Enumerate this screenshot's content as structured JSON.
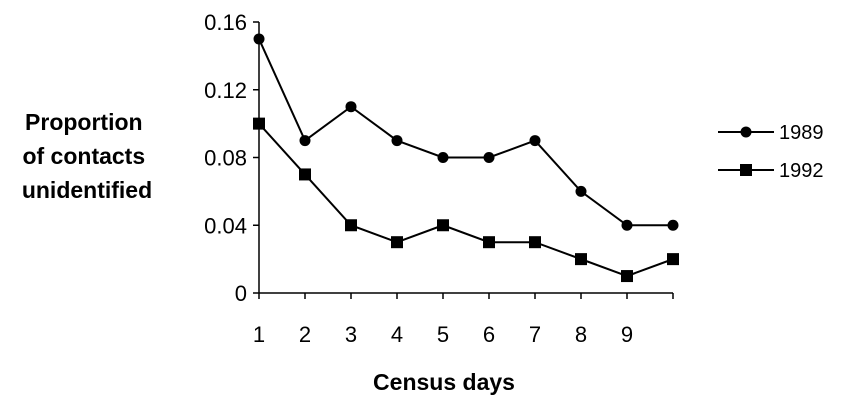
{
  "chart_data": {
    "type": "line",
    "x": [
      1,
      2,
      3,
      4,
      5,
      6,
      7,
      8,
      9,
      10
    ],
    "x_tick_labels": [
      "1",
      "2",
      "3",
      "4",
      "5",
      "6",
      "7",
      "8",
      "9"
    ],
    "xlim": [
      1,
      10
    ],
    "xlabel": "Census days",
    "ylabel_lines": [
      "Proportion",
      "of contacts",
      "unidentified"
    ],
    "ylim": [
      0,
      0.16
    ],
    "y_ticks": [
      0,
      0.04,
      0.08,
      0.12,
      0.16
    ],
    "y_tick_labels": [
      "0",
      "0.04",
      "0.08",
      "0.12",
      "0.16"
    ],
    "grid": false,
    "legend_position": "right",
    "series": [
      {
        "name": "1989",
        "marker": "circle",
        "color": "#000000",
        "values": [
          0.15,
          0.09,
          0.11,
          0.09,
          0.08,
          0.08,
          0.09,
          0.06,
          0.04,
          0.04
        ]
      },
      {
        "name": "1992",
        "marker": "square",
        "color": "#000000",
        "values": [
          0.1,
          0.07,
          0.04,
          0.03,
          0.04,
          0.03,
          0.03,
          0.02,
          0.01,
          0.02
        ]
      }
    ]
  }
}
